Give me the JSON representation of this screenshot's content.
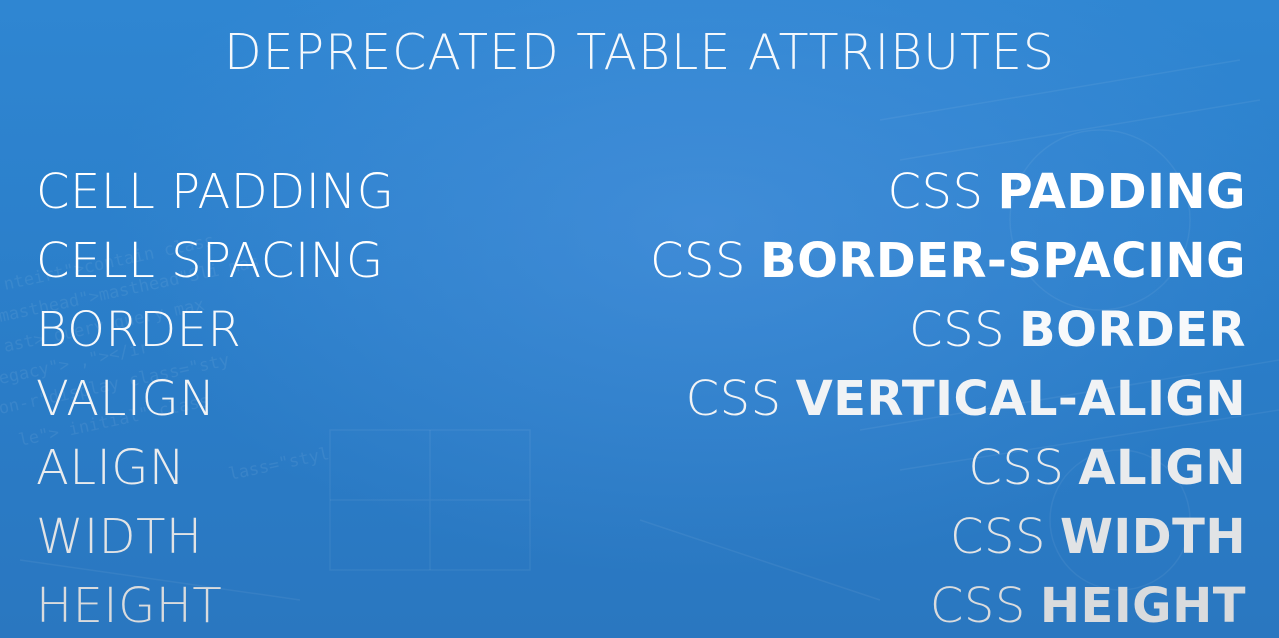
{
  "title": "DEPRECATED TABLE ATTRIBUTES",
  "rows": [
    {
      "attribute": "CELL PADDING",
      "css_prefix": "CSS",
      "css_property": "PADDING"
    },
    {
      "attribute": "CELL SPACING",
      "css_prefix": "CSS",
      "css_property": "BORDER-SPACING"
    },
    {
      "attribute": "BORDER",
      "css_prefix": "CSS",
      "css_property": "BORDER"
    },
    {
      "attribute": "VALIGN",
      "css_prefix": "CSS",
      "css_property": "VERTICAL-ALIGN"
    },
    {
      "attribute": "ALIGN",
      "css_prefix": "CSS",
      "css_property": "ALIGN"
    },
    {
      "attribute": "WIDTH",
      "css_prefix": "CSS",
      "css_property": "WIDTH"
    },
    {
      "attribute": "HEIGHT",
      "css_prefix": "CSS",
      "css_property": "HEIGHT"
    }
  ],
  "colors": {
    "background": "#2f86d2",
    "text": "#ffffff"
  }
}
